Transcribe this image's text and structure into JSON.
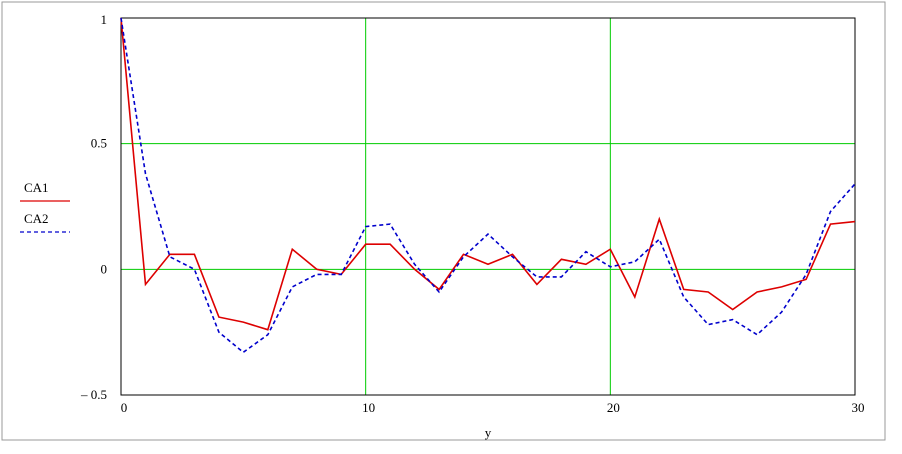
{
  "chart_data": {
    "type": "line",
    "xlabel": "y",
    "ylabel": "",
    "xlim": [
      0,
      30
    ],
    "ylim": [
      -0.5,
      1
    ],
    "x_ticks": [
      0,
      10,
      20,
      30
    ],
    "y_ticks": [
      -0.5,
      0,
      0.5,
      1
    ],
    "x_tick_labels": [
      "0",
      "10",
      "20",
      "30"
    ],
    "y_tick_labels": [
      "– 0.5",
      "0",
      "0.5",
      "1"
    ],
    "grid": true,
    "grid_color": "#00cc00",
    "legend_position": "left",
    "x": [
      0,
      1,
      2,
      3,
      4,
      5,
      6,
      7,
      8,
      9,
      10,
      11,
      12,
      13,
      14,
      15,
      16,
      17,
      18,
      19,
      20,
      21,
      22,
      23,
      24,
      25,
      26,
      27,
      28,
      29,
      30
    ],
    "series": [
      {
        "name": "CA1",
        "color": "#dd0000",
        "style": "solid",
        "values": [
          1.0,
          -0.06,
          0.06,
          0.06,
          -0.19,
          -0.21,
          -0.24,
          0.08,
          0.0,
          -0.02,
          0.1,
          0.1,
          0.0,
          -0.08,
          0.06,
          0.02,
          0.06,
          -0.06,
          0.04,
          0.02,
          0.08,
          -0.11,
          0.2,
          -0.08,
          -0.09,
          -0.16,
          -0.09,
          -0.07,
          -0.04,
          0.18,
          0.19
        ]
      },
      {
        "name": "CA2",
        "color": "#0000cc",
        "style": "dashed",
        "values": [
          1.0,
          0.38,
          0.05,
          0.0,
          -0.25,
          -0.33,
          -0.26,
          -0.07,
          -0.02,
          -0.02,
          0.17,
          0.18,
          0.02,
          -0.09,
          0.05,
          0.14,
          0.05,
          -0.03,
          -0.03,
          0.07,
          0.01,
          0.03,
          0.12,
          -0.11,
          -0.22,
          -0.2,
          -0.26,
          -0.17,
          -0.02,
          0.23,
          0.34
        ]
      }
    ]
  }
}
